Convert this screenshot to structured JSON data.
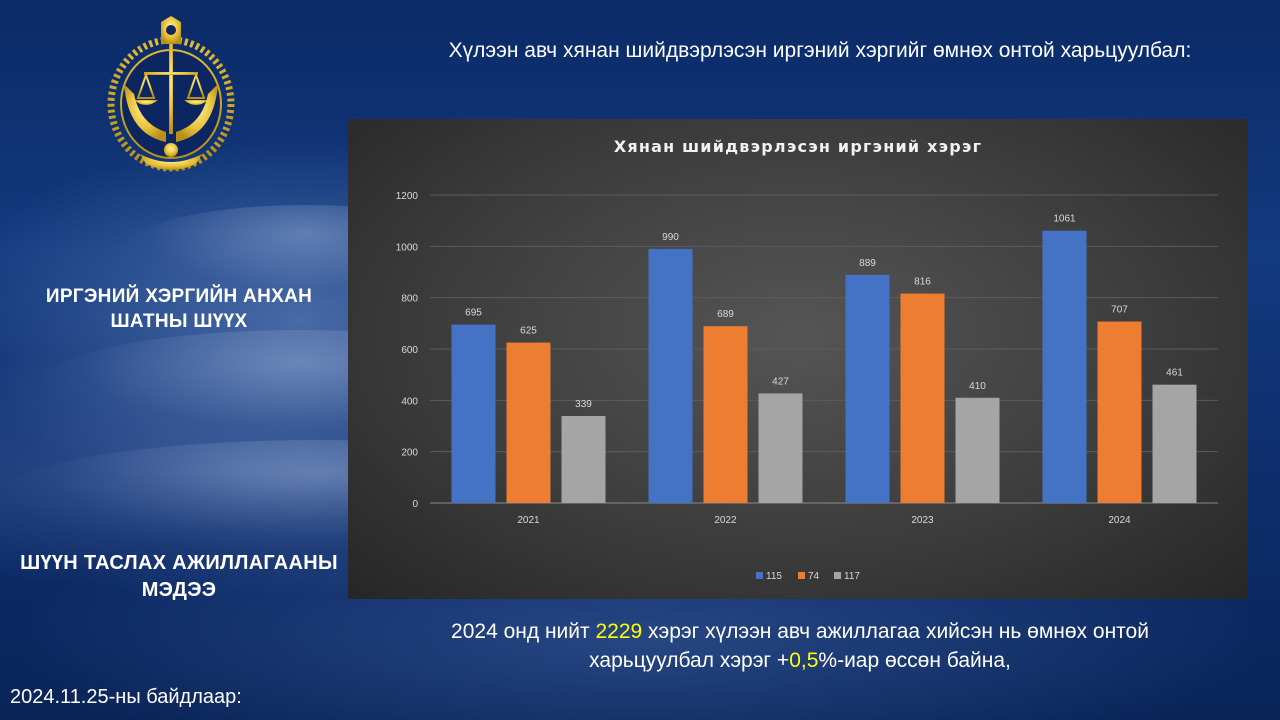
{
  "slide": {
    "heading": "Хүлээн авч хянан шийдвэрлэсэн иргэний хэргийг өмнөх  онтой харьцуулбал:",
    "left_title_1": "ИРГЭНИЙ ХЭРГИЙН АНХАН ШАТНЫ ШҮҮХ",
    "left_title_2": "ШҮҮН ТАСЛАХ АЖИЛЛАГААНЫ МЭДЭЭ",
    "summary_part1": "2024 онд нийт ",
    "summary_total": "2229",
    "summary_part2": " хэрэг хүлээн авч ажиллагаа хийсэн нь өмнөх онтой харьцуулбал хэрэг +",
    "summary_percent": "0,5",
    "summary_part3": "%-иар өссөн байна,",
    "date_note": "2024.11.25-ны байдлаар:",
    "logo_icon": "court-emblem-icon",
    "highlight_color": "#ffff00"
  },
  "chart_data": {
    "type": "bar",
    "title": "Хянан шийдвэрлэсэн иргэний хэрэг",
    "categories": [
      "2021",
      "2022",
      "2023",
      "2024"
    ],
    "series": [
      {
        "name": "115",
        "values": [
          695,
          990,
          889,
          1061
        ],
        "color": "#4472c4"
      },
      {
        "name": "74",
        "values": [
          625,
          689,
          816,
          707
        ],
        "color": "#ed7d31"
      },
      {
        "name": "117",
        "values": [
          339,
          427,
          410,
          461
        ],
        "color": "#a5a5a5"
      }
    ],
    "ylim": [
      0,
      1200
    ],
    "yticks": [
      0,
      200,
      400,
      600,
      800,
      1000,
      1200
    ],
    "grid": true,
    "data_labels": true,
    "legend_position": "bottom"
  }
}
